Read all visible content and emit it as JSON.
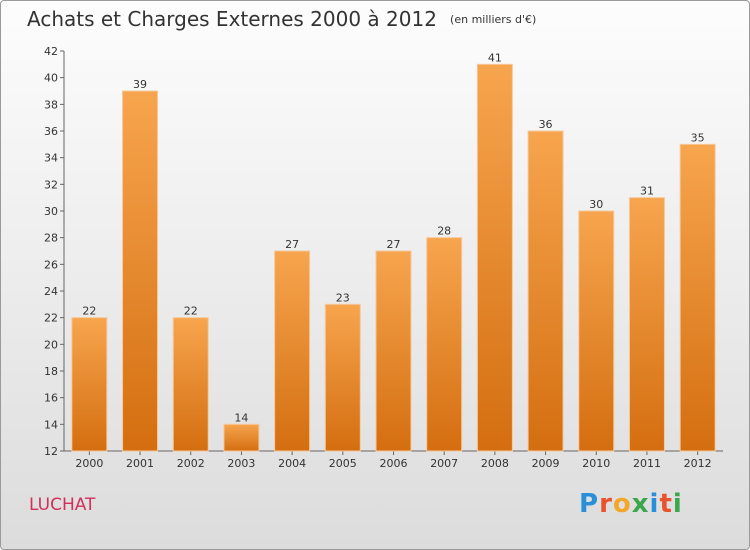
{
  "chart_data": {
    "type": "bar",
    "title": "Achats et Charges Externes 2000 à 2012",
    "subtitle": "(en milliers d'€)",
    "categories": [
      "2000",
      "2001",
      "2002",
      "2003",
      "2004",
      "2005",
      "2006",
      "2007",
      "2008",
      "2009",
      "2010",
      "2011",
      "2012"
    ],
    "values": [
      22,
      39,
      22,
      14,
      27,
      23,
      27,
      28,
      41,
      36,
      30,
      31,
      35
    ],
    "ylim": [
      12,
      42
    ],
    "yticks": [
      12,
      14,
      16,
      18,
      20,
      22,
      24,
      26,
      28,
      30,
      32,
      34,
      36,
      38,
      40,
      42
    ],
    "grid": false,
    "colors": {
      "bar_top": "#f7a54e",
      "bar_bottom": "#d46e10",
      "bar_edge": "#f6c89a"
    }
  },
  "footer": {
    "commune": "LUCHAT",
    "logo_letters": [
      "P",
      "r",
      "o",
      "x",
      "i",
      "t",
      "i"
    ],
    "logo_colors": [
      "#2a8fd8",
      "#e8522c",
      "#f2a72a",
      "#3aa84a",
      "#2a8fd8",
      "#e8522c",
      "#3aa84a"
    ]
  }
}
